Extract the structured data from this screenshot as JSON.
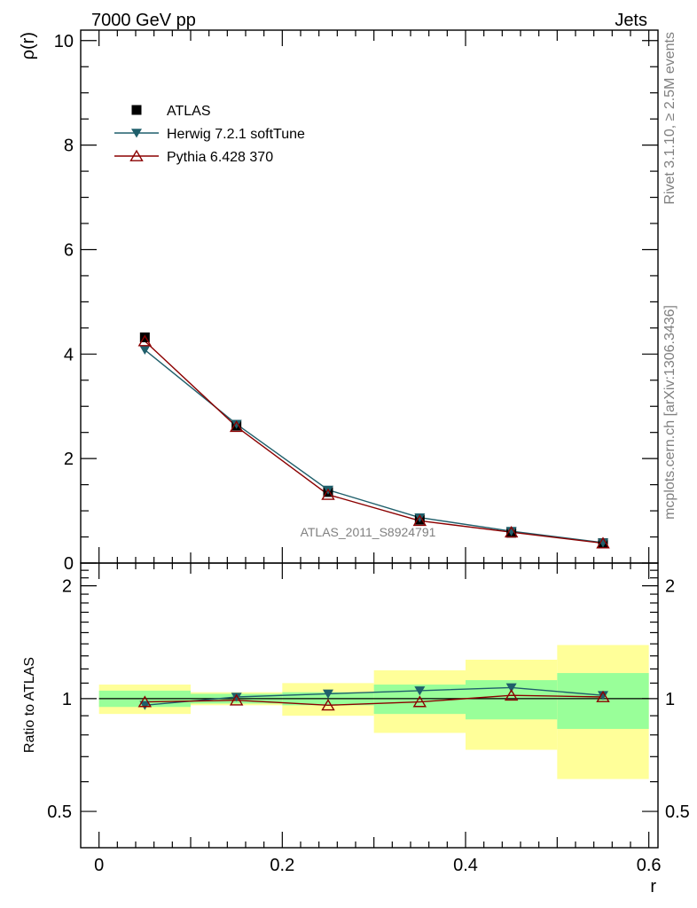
{
  "header": {
    "left_title": "7000 GeV pp",
    "right_title": "Jets",
    "side_text_top": "Rivet 3.1.10, ≥ 2.5M events",
    "side_text_bottom": "mcplots.cern.ch [arXiv:1306.3436]",
    "watermark": "ATLAS_2011_S8924791"
  },
  "legend": [
    {
      "label": "ATLAS",
      "marker": "square",
      "color": "#000000"
    },
    {
      "label": "Herwig 7.2.1 softTune",
      "marker": "triangle-down",
      "color": "#1f5f6b"
    },
    {
      "label": "Pythia 6.428 370",
      "marker": "triangle-up-open",
      "color": "#8b0000"
    }
  ],
  "colors": {
    "data": "#000000",
    "herwig": "#1f5f6b",
    "pythia": "#8b0000",
    "band_stat": "#99ff99",
    "band_total": "#ffff99"
  },
  "chart_data": [
    {
      "type": "line",
      "name": "main",
      "xlabel": "",
      "ylabel": "ρ(r)",
      "xlim": [
        -0.02,
        0.61
      ],
      "ylim": [
        0,
        10.2
      ],
      "y_ticks": [
        0,
        2,
        4,
        6,
        8,
        10
      ],
      "y_tick_labels": [
        "0",
        "2",
        "4",
        "6",
        "8",
        "10"
      ],
      "x": [
        0.05,
        0.15,
        0.25,
        0.35,
        0.45,
        0.55
      ],
      "series": [
        {
          "name": "ATLAS",
          "values": [
            4.32,
            2.63,
            1.36,
            0.83,
            0.58,
            0.38
          ]
        },
        {
          "name": "Herwig 7.2.1 softTune",
          "values": [
            4.08,
            2.66,
            1.4,
            0.87,
            0.61,
            0.39
          ]
        },
        {
          "name": "Pythia 6.428 370",
          "values": [
            4.25,
            2.61,
            1.31,
            0.81,
            0.59,
            0.38
          ]
        }
      ]
    },
    {
      "type": "line",
      "name": "ratio",
      "xlabel": "r",
      "ylabel": "Ratio to ATLAS",
      "xlim": [
        -0.02,
        0.61
      ],
      "ylim": [
        0.4,
        2.3
      ],
      "y_scale": "log",
      "y_ticks": [
        0.5,
        1,
        2
      ],
      "y_tick_labels": [
        "0.5",
        "1",
        "2"
      ],
      "x_ticks": [
        0,
        0.2,
        0.4,
        0.6
      ],
      "x_tick_labels": [
        "0",
        "0.2",
        "0.4",
        "0.6"
      ],
      "x": [
        0.05,
        0.15,
        0.25,
        0.35,
        0.45,
        0.55
      ],
      "bins": [
        [
          0.0,
          0.1
        ],
        [
          0.1,
          0.2
        ],
        [
          0.2,
          0.3
        ],
        [
          0.3,
          0.4
        ],
        [
          0.4,
          0.5
        ],
        [
          0.5,
          0.6
        ]
      ],
      "band_stat": [
        [
          0.95,
          1.05
        ],
        [
          0.97,
          1.03
        ],
        [
          0.96,
          1.04
        ],
        [
          0.91,
          1.09
        ],
        [
          0.88,
          1.12
        ],
        [
          0.83,
          1.17
        ]
      ],
      "band_total": [
        [
          0.91,
          1.09
        ],
        [
          0.96,
          1.04
        ],
        [
          0.9,
          1.1
        ],
        [
          0.81,
          1.19
        ],
        [
          0.73,
          1.27
        ],
        [
          0.61,
          1.39
        ]
      ],
      "series": [
        {
          "name": "Herwig 7.2.1 softTune",
          "values": [
            0.96,
            1.01,
            1.03,
            1.05,
            1.07,
            1.02
          ]
        },
        {
          "name": "Pythia 6.428 370",
          "values": [
            0.98,
            0.99,
            0.96,
            0.98,
            1.02,
            1.01
          ]
        }
      ]
    }
  ]
}
